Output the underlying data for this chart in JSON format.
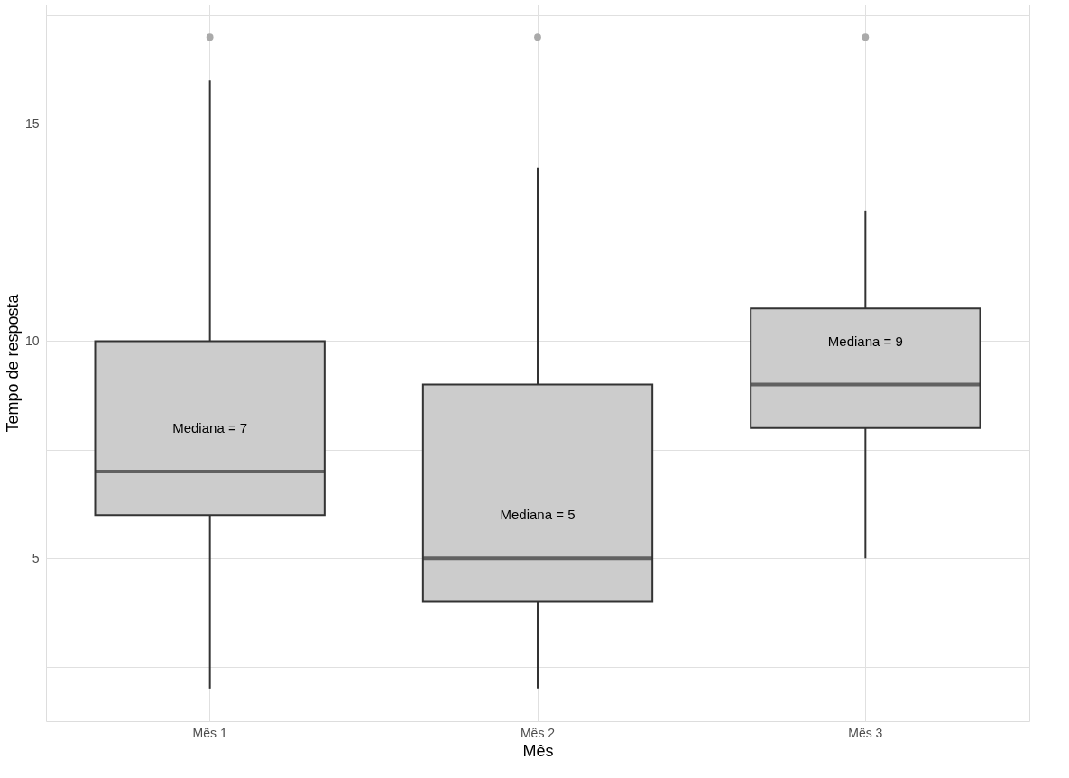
{
  "chart_data": {
    "type": "box",
    "xlabel": "Mês",
    "ylabel": "Tempo de resposta",
    "categories": [
      "Mês 1",
      "Mês 2",
      "Mês 3"
    ],
    "boxes": [
      {
        "low": 2,
        "q1": 6,
        "median": 7,
        "q3": 10,
        "high": 16,
        "outliers": [
          17
        ]
      },
      {
        "low": 2,
        "q1": 4,
        "median": 5,
        "q3": 9,
        "high": 14,
        "outliers": [
          17
        ]
      },
      {
        "low": 5,
        "q1": 8,
        "median": 9,
        "q3": 10.75,
        "high": 13,
        "outliers": [
          17
        ]
      }
    ],
    "color": "#cccccc",
    "ylim": [
      1.25,
      17.75
    ],
    "yticks": [
      {
        "value": 2.5,
        "label": null
      },
      5,
      {
        "value": 7.5,
        "label": null
      },
      10,
      {
        "value": 12.5,
        "label": null
      },
      15,
      {
        "value": 17.5,
        "label": null
      }
    ],
    "grid": true,
    "annotations": [
      "Mediana = 7",
      "Mediana = 5",
      "Mediana = 9"
    ]
  }
}
